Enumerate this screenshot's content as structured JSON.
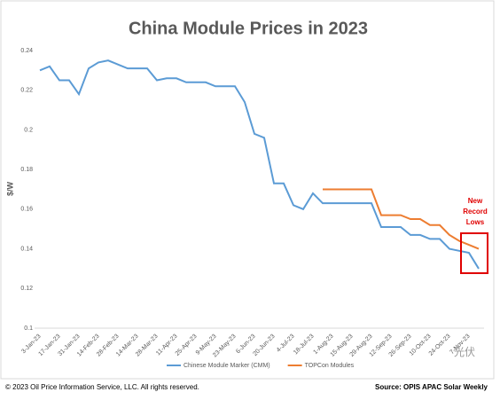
{
  "chart_data": {
    "type": "line",
    "title": "China Module Prices in 2023",
    "y_label": "$/W",
    "categories": [
      "3-Jan-23",
      null,
      "17-Jan-23",
      null,
      "31-Jan-23",
      null,
      "14-Feb-23",
      null,
      "28-Feb-23",
      null,
      "14-Mar-23",
      null,
      "28-Mar-23",
      null,
      "11-Apr-23",
      null,
      "25-Apr-23",
      null,
      "9-May-23",
      null,
      "23-May-23",
      null,
      "6-Jun-23",
      null,
      "20-Jun-23",
      null,
      "4-Jul-23",
      null,
      "18-Jul-23",
      null,
      "1-Aug-23",
      null,
      "15-Aug-23",
      null,
      "29-Aug-23",
      null,
      "12-Sep-23",
      null,
      "26-Sep-23",
      null,
      "10-Oct-23",
      null,
      "24-Oct-23",
      null,
      "7-Nov-23",
      null
    ],
    "series": [
      {
        "name": "Chinese Module Marker (CMM)",
        "color": "#5b9bd5",
        "values": [
          0.23,
          0.232,
          0.225,
          0.225,
          0.218,
          0.231,
          0.234,
          0.235,
          0.233,
          0.231,
          0.231,
          0.231,
          0.225,
          0.226,
          0.226,
          0.224,
          0.224,
          0.224,
          0.222,
          0.222,
          0.222,
          0.214,
          0.198,
          0.196,
          0.173,
          0.173,
          0.162,
          0.16,
          0.168,
          0.163,
          0.163,
          0.163,
          0.163,
          0.163,
          0.163,
          0.151,
          0.151,
          0.151,
          0.147,
          0.147,
          0.145,
          0.145,
          0.14,
          0.139,
          0.138,
          0.13
        ]
      },
      {
        "name": "TOPCon Modules",
        "color": "#ed7d31",
        "values": [
          null,
          null,
          null,
          null,
          null,
          null,
          null,
          null,
          null,
          null,
          null,
          null,
          null,
          null,
          null,
          null,
          null,
          null,
          null,
          null,
          null,
          null,
          null,
          null,
          null,
          null,
          null,
          null,
          null,
          0.17,
          0.17,
          0.17,
          0.17,
          0.17,
          0.17,
          0.157,
          0.157,
          0.157,
          0.155,
          0.155,
          0.152,
          0.152,
          0.147,
          0.144,
          0.142,
          0.14
        ]
      }
    ],
    "ylim": [
      0.1,
      0.24
    ],
    "yticks": [
      0.1,
      0.12,
      0.14,
      0.16,
      0.18,
      0.2,
      0.22,
      0.24
    ],
    "grid": false,
    "legend": "bottom",
    "annotation": {
      "lines": [
        "New",
        "Record",
        "Lows"
      ],
      "color": "#e00000"
    },
    "footer_left": "© 2023 Oil Price Information Service, LLC. All rights reserved.",
    "footer_right": "Source: OPIS APAC Solar Weekly",
    "watermark": "光伏"
  }
}
